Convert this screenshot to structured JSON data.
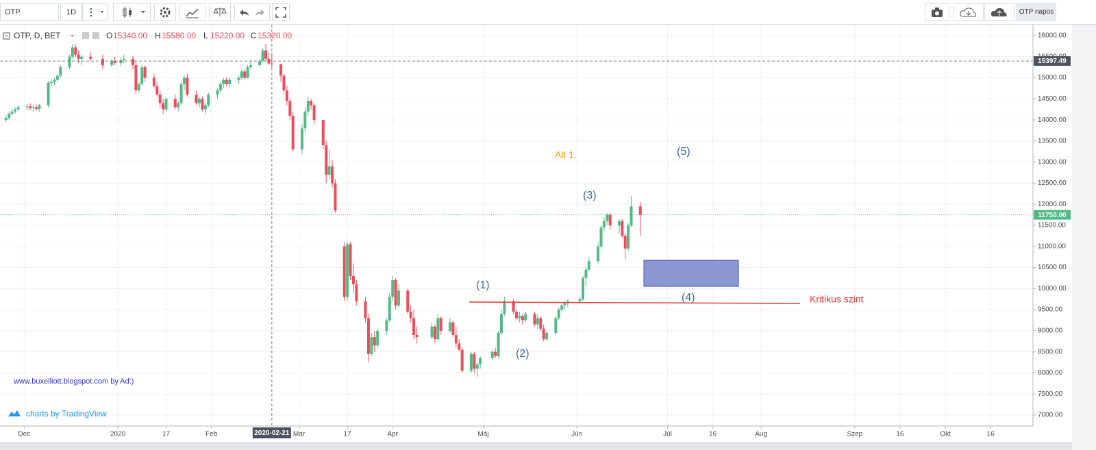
{
  "toolbar": {
    "symbol": "OTP",
    "interval": "1D",
    "layout_name": "OTP napos"
  },
  "chart_data": {
    "type": "candlestick",
    "title": "OTP, D, BET",
    "ohlc_legend": [
      {
        "key": "O",
        "value": "15340.00"
      },
      {
        "key": "H",
        "value": "15580.00"
      },
      {
        "key": "L",
        "value": "15220.00"
      },
      {
        "key": "C",
        "value": "15320.00"
      }
    ],
    "x": [
      "2019-11-25",
      "2019-11-26",
      "2019-11-27",
      "2019-11-28",
      "2019-11-29",
      "2019-12-02",
      "2019-12-03",
      "2019-12-04",
      "2019-12-05",
      "2019-12-06",
      "2019-12-09",
      "2019-12-10",
      "2019-12-11",
      "2019-12-12",
      "2019-12-13",
      "2019-12-16",
      "2019-12-17",
      "2019-12-18",
      "2019-12-19",
      "2019-12-20",
      "2019-12-23",
      "2019-12-27",
      "2019-12-30",
      "2019-12-31",
      "2020-01-02",
      "2020-01-03",
      "2020-01-06",
      "2020-01-07",
      "2020-01-08",
      "2020-01-09",
      "2020-01-10",
      "2020-01-13",
      "2020-01-14",
      "2020-01-15",
      "2020-01-16",
      "2020-01-17",
      "2020-01-20",
      "2020-01-21",
      "2020-01-22",
      "2020-01-23",
      "2020-01-24",
      "2020-01-27",
      "2020-01-28",
      "2020-01-29",
      "2020-01-30",
      "2020-01-31",
      "2020-02-03",
      "2020-02-04",
      "2020-02-05",
      "2020-02-06",
      "2020-02-07",
      "2020-02-10",
      "2020-02-11",
      "2020-02-12",
      "2020-02-13",
      "2020-02-14",
      "2020-02-17",
      "2020-02-18",
      "2020-02-19",
      "2020-02-20",
      "2020-02-21",
      "2020-02-24",
      "2020-02-25",
      "2020-02-26",
      "2020-02-27",
      "2020-02-28",
      "2020-03-02",
      "2020-03-03",
      "2020-03-04",
      "2020-03-05",
      "2020-03-06",
      "2020-03-09",
      "2020-03-10",
      "2020-03-11",
      "2020-03-12",
      "2020-03-13",
      "2020-03-16",
      "2020-03-17",
      "2020-03-18",
      "2020-03-19",
      "2020-03-20",
      "2020-03-23",
      "2020-03-24",
      "2020-03-25",
      "2020-03-26",
      "2020-03-27",
      "2020-03-30",
      "2020-03-31",
      "2020-04-01",
      "2020-04-02",
      "2020-04-03",
      "2020-04-06",
      "2020-04-07",
      "2020-04-08",
      "2020-04-09",
      "2020-04-14",
      "2020-04-15",
      "2020-04-16",
      "2020-04-17",
      "2020-04-20",
      "2020-04-21",
      "2020-04-22",
      "2020-04-23",
      "2020-04-24",
      "2020-04-27",
      "2020-04-28",
      "2020-04-29",
      "2020-04-30",
      "2020-05-04",
      "2020-05-05",
      "2020-05-06",
      "2020-05-07",
      "2020-05-08",
      "2020-05-11",
      "2020-05-12",
      "2020-05-13",
      "2020-05-14",
      "2020-05-15",
      "2020-05-18",
      "2020-05-19",
      "2020-05-20",
      "2020-05-21",
      "2020-05-22",
      "2020-05-25",
      "2020-05-26",
      "2020-05-27",
      "2020-05-28",
      "2020-05-29",
      "2020-06-02",
      "2020-06-03",
      "2020-06-04",
      "2020-06-05",
      "2020-06-08",
      "2020-06-09",
      "2020-06-10",
      "2020-06-11",
      "2020-06-12",
      "2020-06-15",
      "2020-06-16",
      "2020-06-17",
      "2020-06-18",
      "2020-06-19",
      "2020-06-22"
    ],
    "open": [
      14000,
      14050,
      14150,
      14200,
      14250,
      14300,
      14320,
      14280,
      14300,
      14260,
      14350,
      14880,
      14900,
      14950,
      15050,
      15250,
      15500,
      15720,
      15550,
      15450,
      15500,
      15450,
      15300,
      15400,
      15350,
      15420,
      15450,
      15300,
      14700,
      14850,
      15250,
      15000,
      14800,
      14600,
      14400,
      14250,
      14500,
      14300,
      14400,
      14850,
      15000,
      14600,
      14400,
      14500,
      14250,
      14350,
      14600,
      14700,
      14850,
      14950,
      14850,
      14950,
      15000,
      15150,
      15000,
      15250,
      15300,
      15400,
      15650,
      15450,
      15340,
      15320,
      15050,
      14700,
      14450,
      14100,
      13300,
      13800,
      14200,
      14450,
      14350,
      14000,
      13400,
      12700,
      12900,
      12500,
      11000,
      9800,
      11050,
      10300,
      10100,
      9700,
      9300,
      8450,
      8850,
      8650,
      9000,
      9250,
      9800,
      10200,
      9600,
      9950,
      9450,
      9300,
      8900,
      8850,
      9100,
      8800,
      9300,
      9000,
      9200,
      8900,
      8700,
      8550,
      8050,
      8450,
      8100,
      8200,
      8350,
      8500,
      8400,
      8950,
      9400,
      9700,
      9450,
      9300,
      9350,
      9250,
      9400,
      9150,
      9300,
      9050,
      8800,
      8950,
      9300,
      9500,
      9600,
      9650,
      9700,
      9750,
      10250,
      10450,
      10650,
      11000,
      11450,
      11600,
      11750,
      11500,
      11600,
      11250,
      10950,
      11500,
      11950
    ],
    "high": [
      14120,
      14200,
      14260,
      14300,
      14360,
      14380,
      14400,
      14360,
      14370,
      14380,
      14920,
      14980,
      15000,
      15100,
      15300,
      15550,
      15800,
      15780,
      15650,
      15550,
      15600,
      15550,
      15450,
      15500,
      15480,
      15550,
      15520,
      15400,
      14900,
      15300,
      15300,
      15100,
      14900,
      14700,
      14500,
      14550,
      14600,
      14450,
      14900,
      15050,
      15100,
      14700,
      14550,
      14550,
      14400,
      14650,
      14750,
      14900,
      15000,
      15000,
      15000,
      15050,
      15200,
      15200,
      15300,
      15400,
      15450,
      15700,
      15800,
      15600,
      15580,
      15330,
      15100,
      14800,
      14500,
      14200,
      13900,
      14300,
      14550,
      14500,
      14400,
      14000,
      13500,
      13300,
      13050,
      12600,
      11100,
      11100,
      11100,
      10600,
      10200,
      9800,
      9400,
      8950,
      9000,
      9050,
      9300,
      9900,
      10300,
      10250,
      10100,
      10000,
      9600,
      9500,
      9100,
      9200,
      9150,
      9400,
      9350,
      9300,
      9250,
      9100,
      8800,
      8600,
      8500,
      8500,
      8250,
      8400,
      8550,
      8600,
      9000,
      9500,
      9800,
      9750,
      9500,
      9450,
      9400,
      9450,
      9450,
      9400,
      9350,
      9150,
      9000,
      9350,
      9550,
      9650,
      9700,
      9750,
      9800,
      10300,
      10500,
      10750,
      11100,
      11500,
      11700,
      11800,
      11800,
      11650,
      11650,
      11300,
      11550,
      12200,
      12050
    ],
    "low": [
      13950,
      14000,
      14100,
      14150,
      14200,
      14220,
      14230,
      14200,
      14220,
      14200,
      14300,
      14800,
      14820,
      14900,
      15000,
      15200,
      15450,
      15500,
      15350,
      15300,
      15400,
      15200,
      15250,
      15300,
      15280,
      15350,
      15200,
      14600,
      14650,
      14800,
      14900,
      14750,
      14550,
      14300,
      14150,
      14200,
      14250,
      14200,
      14350,
      14700,
      14550,
      14350,
      14300,
      14200,
      14150,
      14300,
      14500,
      14650,
      14750,
      14800,
      14780,
      14850,
      14950,
      14950,
      14980,
      15200,
      15250,
      15350,
      15400,
      15300,
      15220,
      14900,
      14600,
      14350,
      14000,
      13250,
      13200,
      13700,
      14100,
      14250,
      13900,
      13300,
      12500,
      12600,
      12400,
      11800,
      9700,
      9700,
      10200,
      9900,
      9600,
      9200,
      8250,
      8400,
      8500,
      8600,
      8900,
      9200,
      9700,
      9500,
      9550,
      9400,
      9200,
      8800,
      8700,
      8800,
      8700,
      8750,
      8900,
      8950,
      8850,
      8600,
      8500,
      8000,
      8000,
      8000,
      7900,
      8100,
      8300,
      8350,
      8350,
      8900,
      9350,
      9400,
      9250,
      9200,
      9150,
      9200,
      9100,
      9050,
      9000,
      8750,
      8750,
      8900,
      9250,
      9450,
      9500,
      9550,
      9650,
      9700,
      10050,
      10400,
      10600,
      10950,
      11350,
      11500,
      11400,
      11300,
      11200,
      10700,
      10900,
      11450,
      11250
    ],
    "close": [
      14050,
      14150,
      14200,
      14250,
      14300,
      14320,
      14280,
      14300,
      14260,
      14350,
      14880,
      14900,
      14950,
      15050,
      15250,
      15500,
      15720,
      15550,
      15450,
      15500,
      15450,
      15300,
      15400,
      15350,
      15420,
      15450,
      15300,
      14700,
      14850,
      15250,
      15000,
      14800,
      14600,
      14400,
      14250,
      14500,
      14300,
      14400,
      14850,
      15000,
      14600,
      14400,
      14500,
      14250,
      14350,
      14600,
      14700,
      14850,
      14950,
      14850,
      14950,
      15000,
      15150,
      15000,
      15250,
      15300,
      15400,
      15650,
      15450,
      15340,
      15320,
      15050,
      14700,
      14450,
      14100,
      13300,
      13800,
      14200,
      14450,
      14350,
      14000,
      13400,
      12700,
      12900,
      12500,
      11850,
      9800,
      11050,
      10300,
      10100,
      9700,
      9300,
      8450,
      8850,
      8650,
      9000,
      9250,
      9800,
      10200,
      9600,
      9950,
      9450,
      9300,
      8900,
      8850,
      9100,
      8800,
      9300,
      9000,
      9200,
      8900,
      8700,
      8550,
      8050,
      8450,
      8100,
      8200,
      8350,
      8500,
      8400,
      8950,
      9400,
      9700,
      9450,
      9300,
      9350,
      9250,
      9400,
      9150,
      9300,
      9050,
      8800,
      8950,
      9300,
      9500,
      9600,
      9650,
      9700,
      9750,
      10250,
      10450,
      10650,
      11000,
      11450,
      11600,
      11750,
      11500,
      11600,
      11250,
      10950,
      11500,
      11950,
      11750
    ],
    "up_color": "#53b987",
    "down_color": "#eb4d5c",
    "xlim": [
      "2019-11-23",
      "2020-10-30"
    ],
    "xticks": [
      {
        "value": "2019-12-01",
        "label": "Dec"
      },
      {
        "value": "2020-01-01",
        "label": "2020"
      },
      {
        "value": "2020-01-17",
        "label": "17"
      },
      {
        "value": "2020-02-01",
        "label": "Feb"
      },
      {
        "value": "2020-03-01",
        "label": "Mar"
      },
      {
        "value": "2020-03-17",
        "label": "17"
      },
      {
        "value": "2020-04-01",
        "label": "Apr"
      },
      {
        "value": "2020-05-01",
        "label": "Máj"
      },
      {
        "value": "2020-06-01",
        "label": "Jún"
      },
      {
        "value": "2020-07-01",
        "label": "Júl"
      },
      {
        "value": "2020-07-16",
        "label": "16"
      },
      {
        "value": "2020-08-01",
        "label": "Aug"
      },
      {
        "value": "2020-09-01",
        "label": "Szep"
      },
      {
        "value": "2020-09-16",
        "label": "16"
      },
      {
        "value": "2020-10-01",
        "label": "Okt"
      },
      {
        "value": "2020-10-16",
        "label": "16"
      }
    ],
    "ylim": [
      6740,
      16260
    ],
    "yticks": [
      {
        "value": 7000,
        "label": "7000.00"
      },
      {
        "value": 7500,
        "label": "7500.00"
      },
      {
        "value": 8000,
        "label": "8000.00"
      },
      {
        "value": 8500,
        "label": "8500.00"
      },
      {
        "value": 9000,
        "label": "9000.00"
      },
      {
        "value": 9500,
        "label": "9500.00"
      },
      {
        "value": 10000,
        "label": "10000.00"
      },
      {
        "value": 10500,
        "label": "10500.00"
      },
      {
        "value": 11000,
        "label": "11000.00"
      },
      {
        "value": 11500,
        "label": "11500.00"
      },
      {
        "value": 12000,
        "label": "12000.00"
      },
      {
        "value": 12500,
        "label": "12500.00"
      },
      {
        "value": 13000,
        "label": "13000.00"
      },
      {
        "value": 13500,
        "label": "13500.00"
      },
      {
        "value": 14000,
        "label": "14000.00"
      },
      {
        "value": 14500,
        "label": "14500.00"
      },
      {
        "value": 15000,
        "label": "15000.00"
      },
      {
        "value": 15500,
        "label": "15500.00"
      },
      {
        "value": 16000,
        "label": "16000.00"
      }
    ],
    "grid": true,
    "crosshair_x": "2020-02-21",
    "crosshair_y": 15397.49,
    "last_price": {
      "value": 11750,
      "label": "11750.00"
    },
    "annotations": [
      "Alt 1.",
      "(1)",
      "(2)",
      "(3)",
      "(4)",
      "(5)",
      "Kritikus szint"
    ],
    "watermarks": [
      "www.buxelliott.blogspot.com by Ad:)",
      "charts by TradingView"
    ]
  }
}
